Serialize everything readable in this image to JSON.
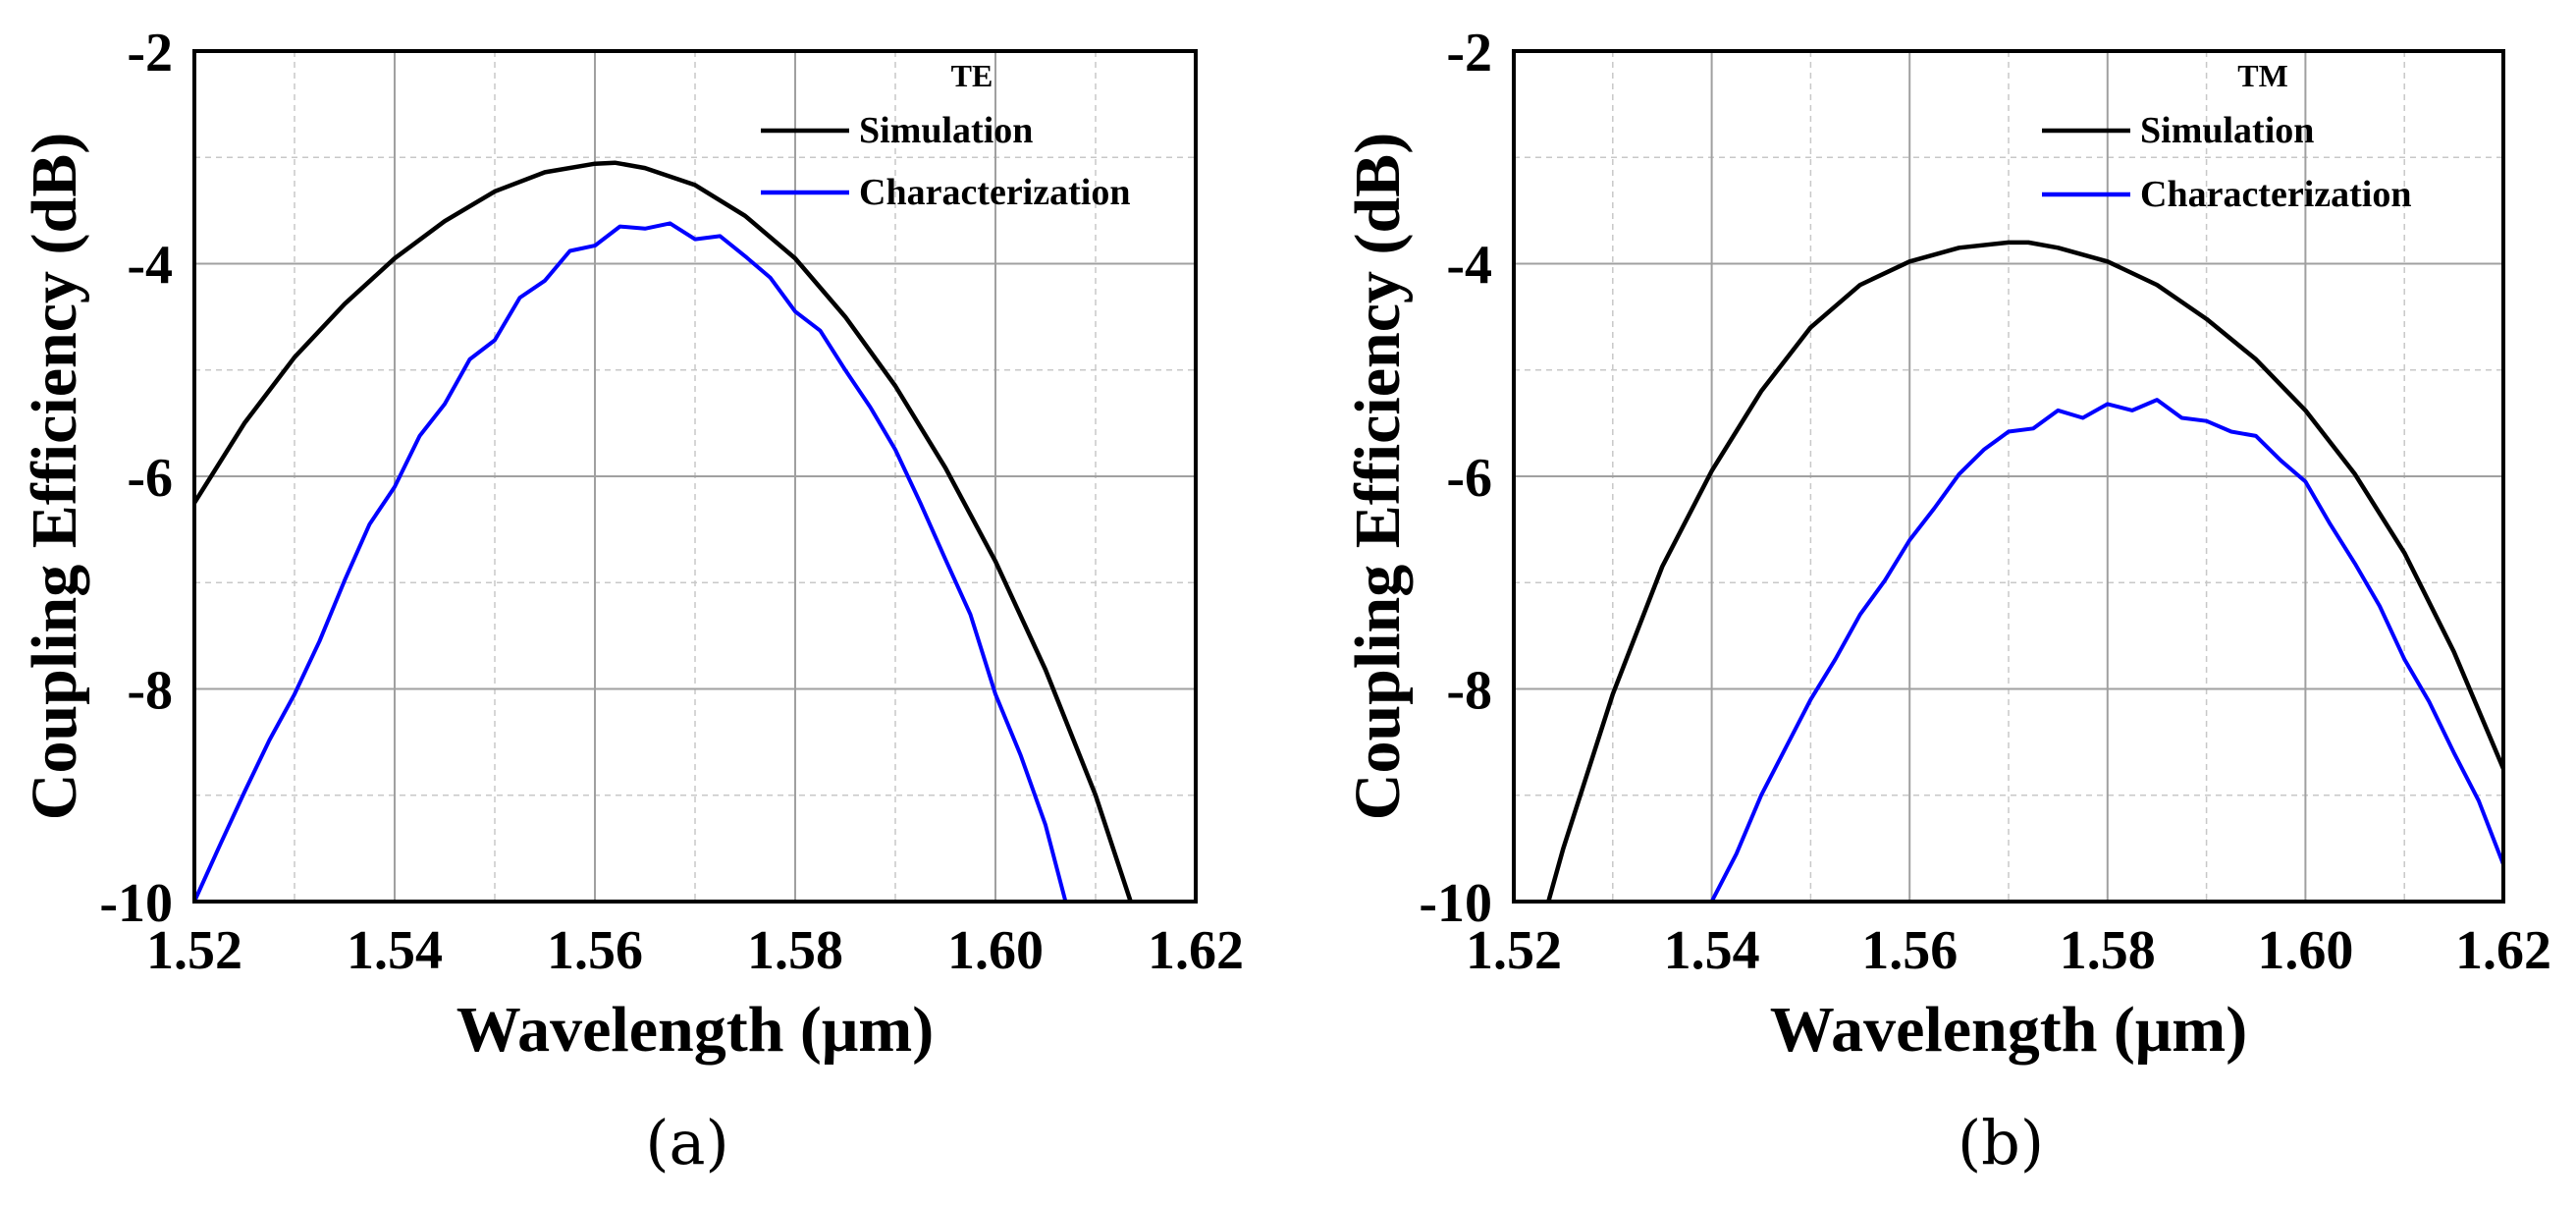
{
  "chart_data": [
    {
      "type": "line",
      "panel": "a",
      "caption": "(a)",
      "legend_title": "TE",
      "xlabel": "Wavelength (μm)",
      "ylabel": "Coupling Efficiency (dB)",
      "xlim": [
        1.52,
        1.62
      ],
      "ylim": [
        -10,
        -2
      ],
      "xticks": [
        "1.52",
        "1.54",
        "1.56",
        "1.58",
        "1.60",
        "1.62"
      ],
      "yticks": [
        "-10",
        "-8",
        "-6",
        "-4",
        "-2"
      ],
      "grid": true,
      "legend_position": "top-right",
      "series": [
        {
          "name": "Simulation",
          "color": "#000000",
          "x": [
            1.52,
            1.525,
            1.53,
            1.535,
            1.54,
            1.545,
            1.55,
            1.555,
            1.56,
            1.562,
            1.565,
            1.57,
            1.575,
            1.58,
            1.585,
            1.59,
            1.595,
            1.6,
            1.605,
            1.61,
            1.6135
          ],
          "y": [
            -6.25,
            -5.5,
            -4.88,
            -4.38,
            -3.95,
            -3.6,
            -3.32,
            -3.14,
            -3.06,
            -3.05,
            -3.1,
            -3.26,
            -3.55,
            -3.95,
            -4.5,
            -5.15,
            -5.92,
            -6.8,
            -7.82,
            -9.0,
            -10.0
          ]
        },
        {
          "name": "Characterization",
          "color": "#0000ff",
          "x": [
            1.52,
            1.5225,
            1.525,
            1.5275,
            1.53,
            1.5325,
            1.535,
            1.5375,
            1.54,
            1.5425,
            1.545,
            1.5475,
            1.55,
            1.5525,
            1.555,
            1.5575,
            1.56,
            1.5625,
            1.565,
            1.5675,
            1.57,
            1.5725,
            1.575,
            1.5775,
            1.58,
            1.5825,
            1.585,
            1.5875,
            1.59,
            1.5925,
            1.595,
            1.5975,
            1.6,
            1.6025,
            1.605,
            1.607
          ],
          "y": [
            -10.0,
            -9.48,
            -8.97,
            -8.48,
            -8.05,
            -7.55,
            -6.98,
            -6.45,
            -6.1,
            -5.62,
            -5.32,
            -4.9,
            -4.72,
            -4.32,
            -4.16,
            -3.88,
            -3.83,
            -3.65,
            -3.67,
            -3.62,
            -3.77,
            -3.74,
            -3.93,
            -4.13,
            -4.45,
            -4.63,
            -5.0,
            -5.35,
            -5.75,
            -6.25,
            -6.78,
            -7.3,
            -8.05,
            -8.62,
            -9.28,
            -10.0
          ]
        }
      ]
    },
    {
      "type": "line",
      "panel": "b",
      "caption": "(b)",
      "legend_title": "TM",
      "xlabel": "Wavelength (μm)",
      "ylabel": "Coupling Efficiency (dB)",
      "xlim": [
        1.52,
        1.62
      ],
      "ylim": [
        -10,
        -2
      ],
      "xticks": [
        "1.52",
        "1.54",
        "1.56",
        "1.58",
        "1.60",
        "1.62"
      ],
      "yticks": [
        "-10",
        "-8",
        "-6",
        "-4",
        "-2"
      ],
      "grid": true,
      "legend_position": "top-right",
      "series": [
        {
          "name": "Simulation",
          "color": "#000000",
          "x": [
            1.5235,
            1.525,
            1.53,
            1.535,
            1.54,
            1.545,
            1.55,
            1.555,
            1.56,
            1.565,
            1.57,
            1.572,
            1.575,
            1.58,
            1.585,
            1.59,
            1.595,
            1.6,
            1.605,
            1.61,
            1.615,
            1.62
          ],
          "y": [
            -10.0,
            -9.5,
            -8.05,
            -6.85,
            -5.95,
            -5.2,
            -4.6,
            -4.2,
            -3.98,
            -3.85,
            -3.8,
            -3.8,
            -3.85,
            -3.98,
            -4.2,
            -4.52,
            -4.9,
            -5.38,
            -5.98,
            -6.72,
            -7.65,
            -8.75
          ]
        },
        {
          "name": "Characterization",
          "color": "#0000ff",
          "x": [
            1.54,
            1.5425,
            1.545,
            1.5475,
            1.55,
            1.5525,
            1.555,
            1.5575,
            1.56,
            1.5625,
            1.565,
            1.5675,
            1.57,
            1.5725,
            1.575,
            1.5775,
            1.58,
            1.5825,
            1.585,
            1.5875,
            1.59,
            1.5925,
            1.595,
            1.5975,
            1.6,
            1.6025,
            1.605,
            1.6075,
            1.61,
            1.6125,
            1.615,
            1.6175,
            1.62
          ],
          "y": [
            -10.0,
            -9.55,
            -9.0,
            -8.55,
            -8.1,
            -7.72,
            -7.3,
            -6.98,
            -6.6,
            -6.3,
            -5.98,
            -5.75,
            -5.58,
            -5.55,
            -5.38,
            -5.45,
            -5.32,
            -5.38,
            -5.28,
            -5.45,
            -5.48,
            -5.58,
            -5.62,
            -5.85,
            -6.05,
            -6.45,
            -6.82,
            -7.22,
            -7.72,
            -8.12,
            -8.6,
            -9.05,
            -9.65
          ]
        }
      ]
    }
  ]
}
